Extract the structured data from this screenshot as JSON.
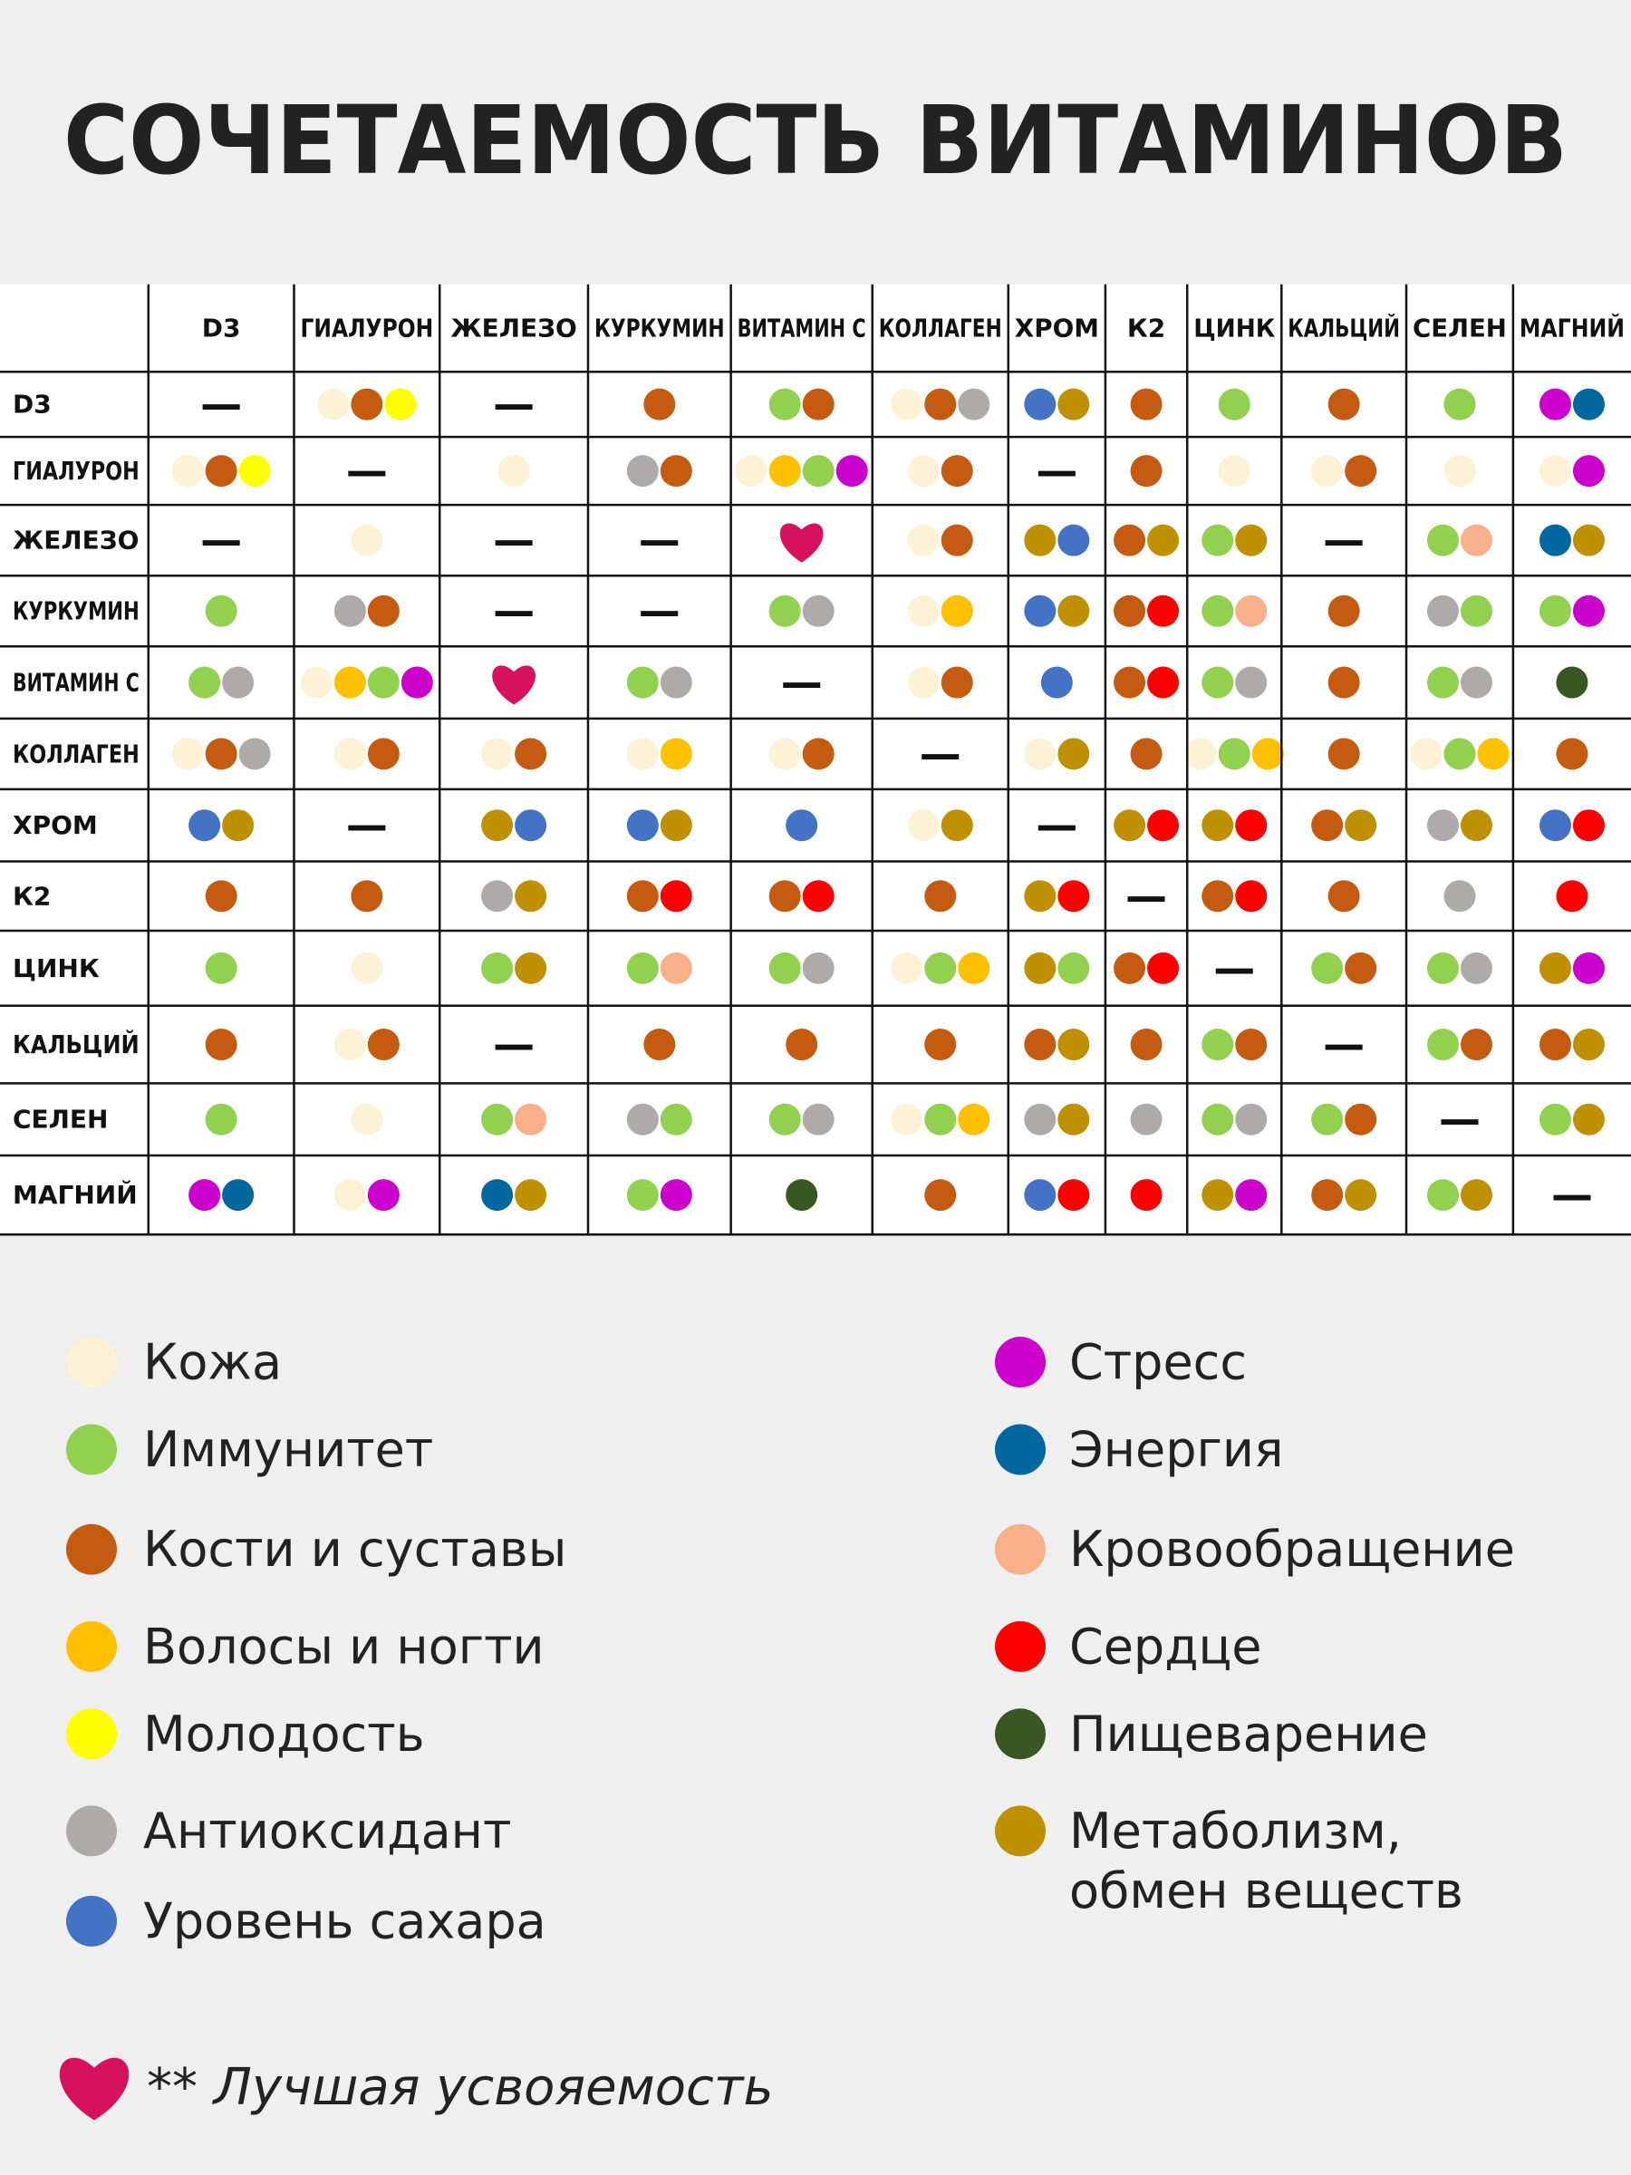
{
  "title": "СОЧЕТАЕМОСТЬ ВИТАМИНОВ",
  "table": {
    "columns": [
      "D3",
      "ГИАЛУРОН",
      "ЖЕЛЕЗО",
      "КУРКУМИН",
      "ВИТАМИН С",
      "КОЛЛАГЕН",
      "ХРОМ",
      "К2",
      "ЦИНК",
      "КАЛЬЦИЙ",
      "СЕЛЕН",
      "МАГНИЙ"
    ],
    "rows": [
      {
        "label": "D3",
        "cells": [
          "—",
          [
            "#fdf1d6",
            "#c55a11",
            "#ffff00"
          ],
          "—",
          [
            "#c55a11"
          ],
          [
            "#92d050",
            "#c55a11"
          ],
          [
            "#fdf1d6",
            "#c55a11",
            "#aeaaaa"
          ],
          [
            "#4472c4",
            "#bf9000"
          ],
          [
            "#c55a11"
          ],
          [
            "#92d050"
          ],
          [
            "#c55a11"
          ],
          [
            "#92d050"
          ],
          [
            "#cc00cc",
            "#00689e"
          ]
        ]
      },
      {
        "label": "ГИАЛУРОН",
        "cells": [
          [
            "#fdf1d6",
            "#c55a11",
            "#ffff00"
          ],
          "—",
          [
            "#fdf1d6"
          ],
          [
            "#aeaaaa",
            "#c55a11"
          ],
          [
            "#fdf1d6",
            "#ffc000",
            "#92d050",
            "#cc00cc"
          ],
          [
            "#fdf1d6",
            "#c55a11"
          ],
          "—",
          [
            "#c55a11"
          ],
          [
            "#fdf1d6"
          ],
          [
            "#fdf1d6",
            "#c55a11"
          ],
          [
            "#fdf1d6"
          ],
          [
            "#fdf1d6",
            "#cc00cc"
          ]
        ]
      },
      {
        "label": "ЖЕЛЕЗО",
        "cells": [
          "—",
          [
            "#fdf1d6"
          ],
          "—",
          "—",
          {
            "shape": "heart",
            "color": "#d6125f"
          },
          [
            "#fdf1d6",
            "#c55a11"
          ],
          [
            "#bf9000",
            "#4472c4"
          ],
          [
            "#c55a11",
            "#bf9000"
          ],
          [
            "#92d050",
            "#bf9000"
          ],
          "—",
          [
            "#92d050",
            "#f8b08a"
          ],
          [
            "#00689e",
            "#bf9000"
          ]
        ]
      },
      {
        "label": "КУРКУМИН",
        "cells": [
          [
            "#92d050"
          ],
          [
            "#aeaaaa",
            "#c55a11"
          ],
          "—",
          "—",
          [
            "#92d050",
            "#aeaaaa"
          ],
          [
            "#fdf1d6",
            "#ffc000"
          ],
          [
            "#4472c4",
            "#bf9000"
          ],
          [
            "#c55a11",
            "#ff0000"
          ],
          [
            "#92d050",
            "#f8b08a"
          ],
          [
            "#c55a11"
          ],
          [
            "#aeaaaa",
            "#92d050"
          ],
          [
            "#92d050",
            "#cc00cc"
          ]
        ]
      },
      {
        "label": "ВИТАМИН С",
        "cells": [
          [
            "#92d050",
            "#aeaaaa"
          ],
          [
            "#fdf1d6",
            "#ffc000",
            "#92d050",
            "#cc00cc"
          ],
          {
            "shape": "heart",
            "color": "#d6125f"
          },
          [
            "#92d050",
            "#aeaaaa"
          ],
          "—",
          [
            "#fdf1d6",
            "#c55a11"
          ],
          [
            "#4472c4"
          ],
          [
            "#c55a11",
            "#ff0000"
          ],
          [
            "#92d050",
            "#aeaaaa"
          ],
          [
            "#c55a11"
          ],
          [
            "#92d050",
            "#aeaaaa"
          ],
          [
            "#385723"
          ]
        ]
      },
      {
        "label": "КОЛЛАГЕН",
        "cells": [
          [
            "#fdf1d6",
            "#c55a11",
            "#aeaaaa"
          ],
          [
            "#fdf1d6",
            "#c55a11"
          ],
          [
            "#fdf1d6",
            "#c55a11"
          ],
          [
            "#fdf1d6",
            "#ffc000"
          ],
          [
            "#fdf1d6",
            "#c55a11"
          ],
          "—",
          [
            "#fdf1d6",
            "#bf9000"
          ],
          [
            "#c55a11"
          ],
          [
            "#fdf1d6",
            "#92d050",
            "#ffc000"
          ],
          [
            "#c55a11"
          ],
          [
            "#fdf1d6",
            "#92d050",
            "#ffc000"
          ],
          [
            "#c55a11"
          ]
        ]
      },
      {
        "label": "ХРОМ",
        "cells": [
          [
            "#4472c4",
            "#bf9000"
          ],
          "—",
          [
            "#bf9000",
            "#4472c4"
          ],
          [
            "#4472c4",
            "#bf9000"
          ],
          [
            "#4472c4"
          ],
          [
            "#fdf1d6",
            "#bf9000"
          ],
          "—",
          [
            "#bf9000",
            "#ff0000"
          ],
          [
            "#bf9000",
            "#ff0000"
          ],
          [
            "#c55a11",
            "#bf9000"
          ],
          [
            "#aeaaaa",
            "#bf9000"
          ],
          [
            "#4472c4",
            "#ff0000"
          ]
        ]
      },
      {
        "label": "К2",
        "cells": [
          [
            "#c55a11"
          ],
          [
            "#c55a11"
          ],
          [
            "#aeaaaa",
            "#bf9000"
          ],
          [
            "#c55a11",
            "#ff0000"
          ],
          [
            "#c55a11",
            "#ff0000"
          ],
          [
            "#c55a11"
          ],
          [
            "#bf9000",
            "#ff0000"
          ],
          "—",
          [
            "#c55a11",
            "#ff0000"
          ],
          [
            "#c55a11"
          ],
          [
            "#aeaaaa"
          ],
          [
            "#ff0000"
          ]
        ]
      },
      {
        "label": "ЦИНК",
        "cells": [
          [
            "#92d050"
          ],
          [
            "#fdf1d6"
          ],
          [
            "#92d050",
            "#bf9000"
          ],
          [
            "#92d050",
            "#f8b08a"
          ],
          [
            "#92d050",
            "#aeaaaa"
          ],
          [
            "#fdf1d6",
            "#92d050",
            "#ffc000"
          ],
          [
            "#bf9000",
            "#92d050"
          ],
          [
            "#c55a11",
            "#ff0000"
          ],
          "—",
          [
            "#92d050",
            "#c55a11"
          ],
          [
            "#92d050",
            "#aeaaaa"
          ],
          [
            "#bf9000",
            "#cc00cc"
          ]
        ]
      },
      {
        "label": "КАЛЬЦИЙ",
        "cells": [
          [
            "#c55a11"
          ],
          [
            "#fdf1d6",
            "#c55a11"
          ],
          "—",
          [
            "#c55a11"
          ],
          [
            "#c55a11"
          ],
          [
            "#c55a11"
          ],
          [
            "#c55a11",
            "#bf9000"
          ],
          [
            "#c55a11"
          ],
          [
            "#92d050",
            "#c55a11"
          ],
          "—",
          [
            "#92d050",
            "#c55a11"
          ],
          [
            "#c55a11",
            "#bf9000"
          ]
        ]
      },
      {
        "label": "СЕЛЕН",
        "cells": [
          [
            "#92d050"
          ],
          [
            "#fdf1d6"
          ],
          [
            "#92d050",
            "#f8b08a"
          ],
          [
            "#aeaaaa",
            "#92d050"
          ],
          [
            "#92d050",
            "#aeaaaa"
          ],
          [
            "#fdf1d6",
            "#92d050",
            "#ffc000"
          ],
          [
            "#aeaaaa",
            "#bf9000"
          ],
          [
            "#aeaaaa"
          ],
          [
            "#92d050",
            "#aeaaaa"
          ],
          [
            "#92d050",
            "#c55a11"
          ],
          "—",
          [
            "#92d050",
            "#bf9000"
          ]
        ]
      },
      {
        "label": "МАГНИЙ",
        "cells": [
          [
            "#cc00cc",
            "#00689e"
          ],
          [
            "#fdf1d6",
            "#cc00cc"
          ],
          [
            "#00689e",
            "#bf9000"
          ],
          [
            "#92d050",
            "#cc00cc"
          ],
          [
            "#385723"
          ],
          [
            "#c55a11"
          ],
          [
            "#4472c4",
            "#ff0000"
          ],
          [
            "#ff0000"
          ],
          [
            "#bf9000",
            "#cc00cc"
          ],
          [
            "#c55a11",
            "#bf9000"
          ],
          [
            "#92d050",
            "#bf9000"
          ],
          "—"
        ]
      }
    ]
  },
  "legend": {
    "left": [
      {
        "label": "Кожа",
        "color": "#fdf1d6"
      },
      {
        "label": "Иммунитет",
        "color": "#92d050"
      },
      {
        "label": "Кости и суставы",
        "color": "#c55a11"
      },
      {
        "label": "Волосы и ногти",
        "color": "#ffc000"
      },
      {
        "label": "Молодость",
        "color": "#ffff00"
      },
      {
        "label": "Антиоксидант",
        "color": "#aeaaaa"
      },
      {
        "label": "Уровень сахара",
        "color": "#4472c4"
      }
    ],
    "right": [
      {
        "label": "Стресс",
        "color": "#cc00cc"
      },
      {
        "label": "Энергия",
        "color": "#00689e"
      },
      {
        "label": "Кровообращение",
        "color": "#f8b08a"
      },
      {
        "label": "Сердце",
        "color": "#ff0000"
      },
      {
        "label": "Пищеварение",
        "color": "#385723"
      },
      {
        "label": [
          "Метаболизм,",
          "обмен веществ"
        ],
        "color": "#bf9000"
      }
    ]
  },
  "footnote": {
    "text": "** Лучшая усвояемость",
    "color": "#d6125f"
  }
}
